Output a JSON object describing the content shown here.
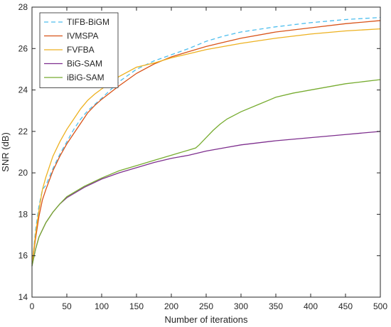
{
  "chart_data": {
    "type": "line",
    "xlabel": "Number of iterations",
    "ylabel": "SNR (dB)",
    "xlim": [
      0,
      500
    ],
    "ylim": [
      14,
      28
    ],
    "xticks": [
      0,
      50,
      100,
      150,
      200,
      250,
      300,
      350,
      400,
      450,
      500
    ],
    "yticks": [
      14,
      16,
      18,
      20,
      22,
      24,
      26,
      28
    ],
    "grid": false,
    "legend_position": "top-left",
    "series": [
      {
        "name": "TIFB-BiGM",
        "color": "#4DBEEE",
        "dash": "dashed",
        "x": [
          0,
          5,
          10,
          15,
          20,
          30,
          40,
          50,
          60,
          70,
          80,
          90,
          100,
          125,
          150,
          175,
          200,
          225,
          250,
          275,
          300,
          350,
          400,
          450,
          500
        ],
        "y": [
          15.5,
          17.2,
          18.4,
          19.2,
          19.4,
          20.2,
          20.9,
          21.5,
          22.1,
          22.6,
          23.0,
          23.3,
          23.6,
          24.4,
          25.0,
          25.4,
          25.7,
          26.0,
          26.35,
          26.6,
          26.8,
          27.05,
          27.25,
          27.4,
          27.5
        ]
      },
      {
        "name": "IVMSPA",
        "color": "#D95319",
        "dash": "solid",
        "x": [
          0,
          5,
          10,
          15,
          20,
          30,
          40,
          50,
          60,
          70,
          80,
          90,
          100,
          125,
          150,
          175,
          200,
          225,
          250,
          275,
          300,
          350,
          400,
          450,
          500
        ],
        "y": [
          15.6,
          16.8,
          17.9,
          18.7,
          19.2,
          20.1,
          20.8,
          21.4,
          21.9,
          22.4,
          22.9,
          23.25,
          23.55,
          24.2,
          24.8,
          25.25,
          25.6,
          25.85,
          26.1,
          26.3,
          26.5,
          26.8,
          27.0,
          27.2,
          27.35
        ]
      },
      {
        "name": "FVFBA",
        "color": "#EDB120",
        "dash": "solid",
        "x": [
          0,
          5,
          10,
          15,
          20,
          30,
          40,
          50,
          60,
          70,
          80,
          90,
          100,
          125,
          150,
          175,
          200,
          225,
          250,
          275,
          300,
          350,
          400,
          450,
          500
        ],
        "y": [
          15.6,
          17.0,
          18.2,
          19.2,
          19.8,
          20.8,
          21.5,
          22.1,
          22.6,
          23.1,
          23.5,
          23.8,
          24.05,
          24.65,
          25.1,
          25.3,
          25.55,
          25.75,
          25.95,
          26.1,
          26.25,
          26.5,
          26.7,
          26.85,
          26.95
        ]
      },
      {
        "name": "BiG-SAM",
        "color": "#7E2F8E",
        "dash": "solid",
        "x": [
          0,
          5,
          10,
          20,
          30,
          40,
          50,
          75,
          100,
          125,
          150,
          175,
          200,
          225,
          250,
          275,
          300,
          350,
          400,
          450,
          500
        ],
        "y": [
          15.5,
          16.3,
          16.9,
          17.6,
          18.1,
          18.5,
          18.8,
          19.3,
          19.7,
          20.0,
          20.25,
          20.5,
          20.7,
          20.85,
          21.05,
          21.2,
          21.35,
          21.55,
          21.7,
          21.85,
          22.0
        ]
      },
      {
        "name": "iBiG-SAM",
        "color": "#77AC30",
        "dash": "solid",
        "x": [
          0,
          5,
          10,
          20,
          30,
          40,
          50,
          75,
          100,
          125,
          150,
          175,
          200,
          225,
          235,
          240,
          250,
          260,
          270,
          280,
          300,
          325,
          350,
          375,
          400,
          450,
          500
        ],
        "y": [
          15.5,
          16.3,
          16.9,
          17.6,
          18.1,
          18.5,
          18.85,
          19.35,
          19.75,
          20.1,
          20.35,
          20.6,
          20.85,
          21.1,
          21.2,
          21.35,
          21.7,
          22.05,
          22.35,
          22.6,
          22.95,
          23.3,
          23.65,
          23.85,
          24.0,
          24.3,
          24.5
        ]
      }
    ]
  }
}
